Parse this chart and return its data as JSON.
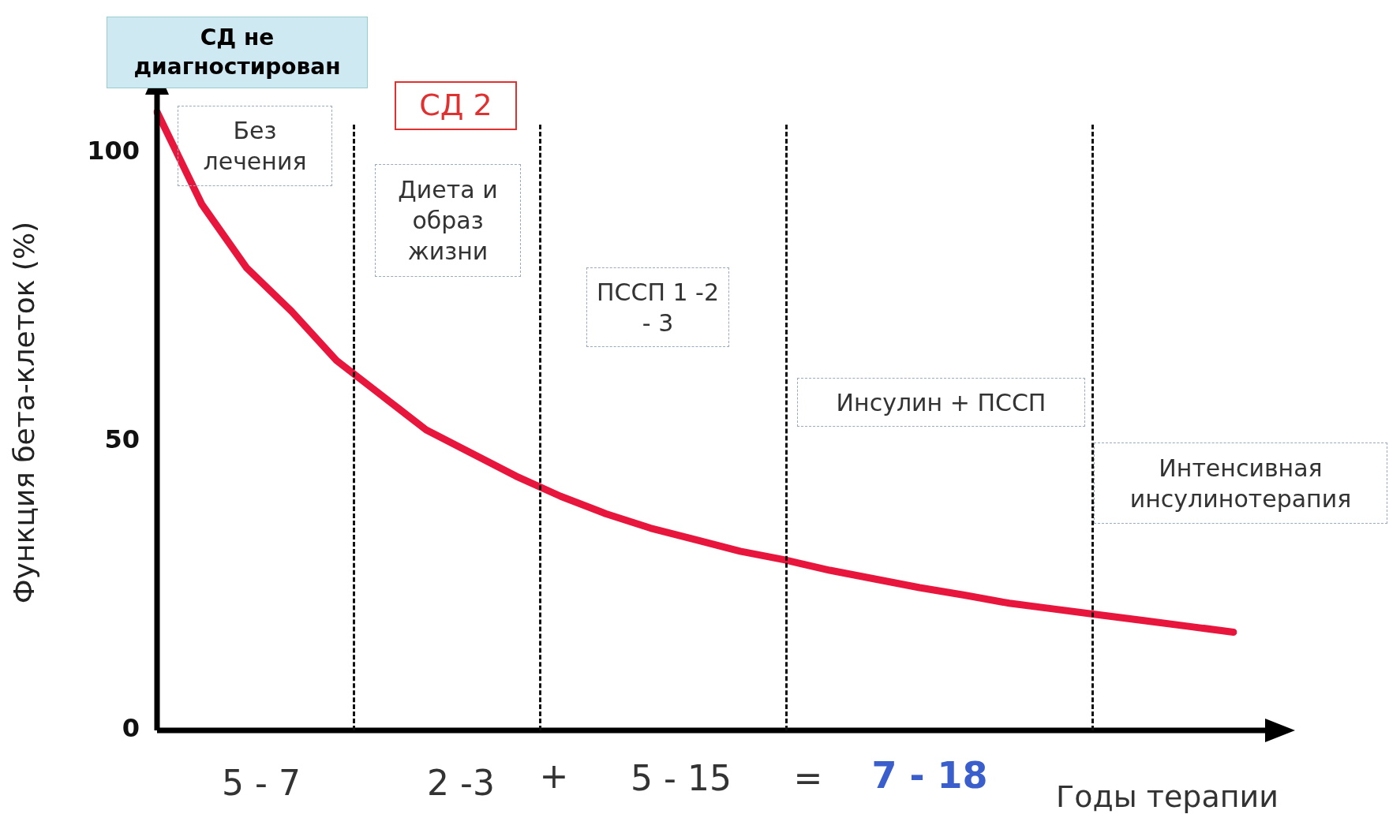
{
  "chart_data": {
    "type": "line",
    "ylabel": "Функция бета-клеток (%)",
    "xlabel": "Годы терапии",
    "categories": [
      null,
      null,
      null,
      null,
      null,
      null,
      null,
      null,
      null,
      null,
      null,
      null,
      null,
      null,
      null,
      null,
      null,
      null,
      null,
      null,
      null,
      null,
      null,
      null,
      null
    ],
    "series": [
      {
        "color": "#e8163c",
        "values": [
          107,
          91,
          80,
          72.5,
          64,
          58,
          52,
          48,
          44,
          40.5,
          37.5,
          35,
          33,
          31,
          29.5,
          27.7,
          26.2,
          24.7,
          23.4,
          22,
          21,
          20,
          19,
          18,
          17
        ]
      }
    ],
    "ylim": [
      0,
      110
    ],
    "yticks": [
      0,
      50,
      100
    ],
    "tick_labels": "y",
    "grid": false,
    "legend": false,
    "marker": "none",
    "line_style": "solid",
    "annotations": [
      "СД не диагностирован",
      "СД 2",
      "Без лечения",
      "Диета и образ жизни",
      "ПССП 1 -2 - 3",
      "Инсулин + ПССП",
      "Интенсивная инсулинотерапия",
      "5 - 7",
      "2 -3",
      "+",
      "5 - 15",
      "=",
      "7 - 18"
    ]
  }
}
